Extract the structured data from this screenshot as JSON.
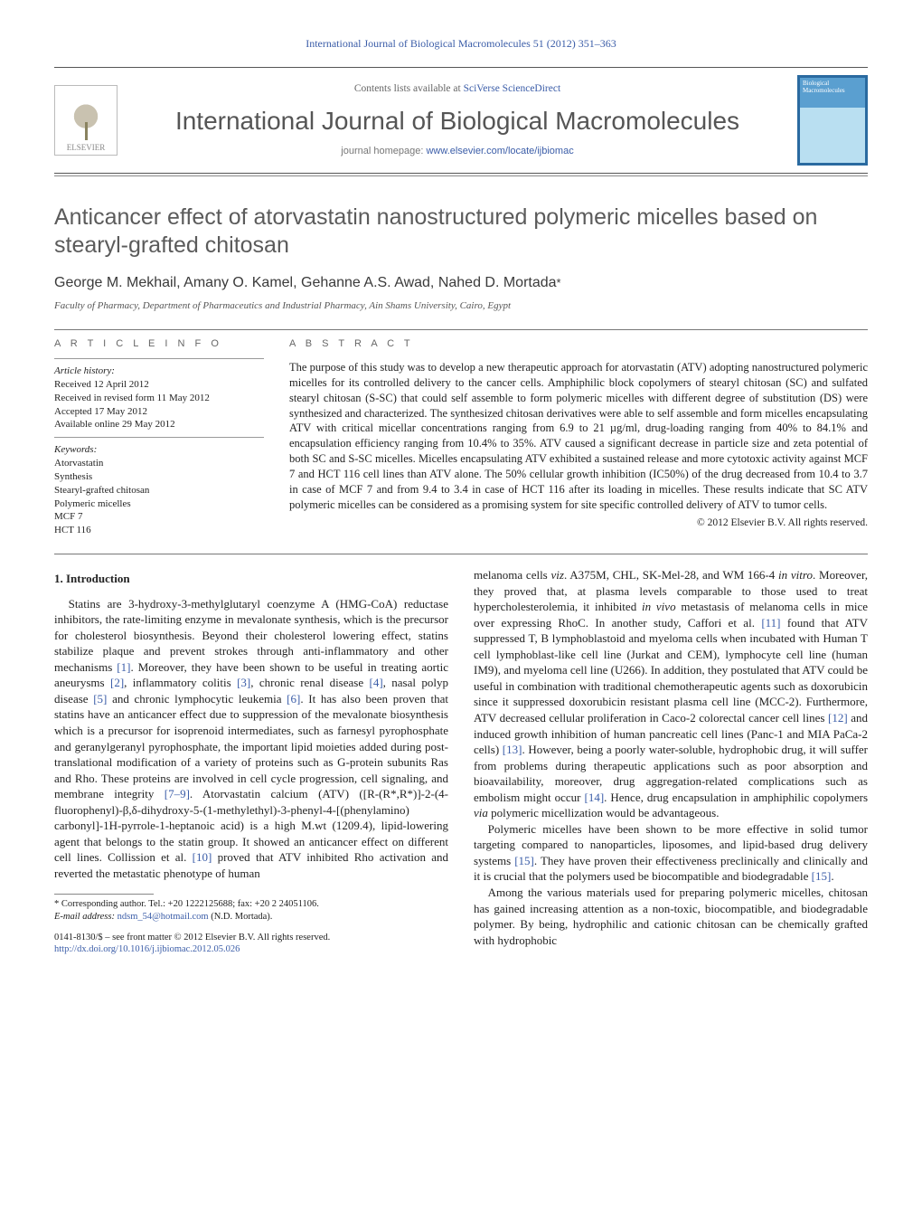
{
  "header": {
    "running_citation": "International Journal of Biological Macromolecules 51 (2012) 351–363",
    "contents_line_prefix": "Contents lists available at ",
    "contents_line_link": "SciVerse ScienceDirect",
    "journal_title": "International Journal of Biological Macromolecules",
    "journal_homepage_prefix": "journal homepage: ",
    "journal_homepage_link": "www.elsevier.com/locate/ijbiomac",
    "publisher_logo_label": "ELSEVIER",
    "cover_caption_top": "Biological",
    "cover_caption_bottom": "Macromolecules"
  },
  "article": {
    "title": "Anticancer effect of atorvastatin nanostructured polymeric micelles based on stearyl-grafted chitosan",
    "authors_line": "George M. Mekhail, Amany O. Kamel, Gehanne A.S. Awad, Nahed D. Mortada",
    "corr_marker": "*",
    "affiliation": "Faculty of Pharmacy, Department of Pharmaceutics and Industrial Pharmacy, Ain Shams University, Cairo, Egypt"
  },
  "info": {
    "info_heading": "a r t i c l e   i n f o",
    "history_label": "Article history:",
    "received": "Received 12 April 2012",
    "received_revised": "Received in revised form 11 May 2012",
    "accepted": "Accepted 17 May 2012",
    "available": "Available online 29 May 2012",
    "keywords_label": "Keywords:",
    "keywords": [
      "Atorvastatin",
      "Synthesis",
      "Stearyl-grafted chitosan",
      "Polymeric micelles",
      "MCF 7",
      "HCT 116"
    ]
  },
  "abstract": {
    "heading": "a b s t r a c t",
    "text": "The purpose of this study was to develop a new therapeutic approach for atorvastatin (ATV) adopting nanostructured polymeric micelles for its controlled delivery to the cancer cells. Amphiphilic block copolymers of stearyl chitosan (SC) and sulfated stearyl chitosan (S-SC) that could self assemble to form polymeric micelles with different degree of substitution (DS) were synthesized and characterized. The synthesized chitosan derivatives were able to self assemble and form micelles encapsulating ATV with critical micellar concentrations ranging from 6.9 to 21 µg/ml, drug-loading ranging from 40% to 84.1% and encapsulation efficiency ranging from 10.4% to 35%. ATV caused a significant decrease in particle size and zeta potential of both SC and S-SC micelles. Micelles encapsulating ATV exhibited a sustained release and more cytotoxic activity against MCF 7 and HCT 116 cell lines than ATV alone. The 50% cellular growth inhibition (IC50%) of the drug decreased from 10.4 to 3.7 in case of MCF 7 and from 9.4 to 3.4 in case of HCT 116 after its loading in micelles. These results indicate that SC ATV polymeric micelles can be considered as a promising system for site specific controlled delivery of ATV to tumor cells.",
    "copyright": "© 2012 Elsevier B.V. All rights reserved."
  },
  "body": {
    "section_heading": "1. Introduction",
    "p1a": "Statins are 3-hydroxy-3-methylglutaryl coenzyme A (HMG-CoA) reductase inhibitors, the rate-limiting enzyme in mevalonate synthesis, which is the precursor for cholesterol biosynthesis. Beyond their cholesterol lowering effect, statins stabilize plaque and prevent strokes through anti-inflammatory and other mechanisms ",
    "c1": "[1]",
    "p1b": ". Moreover, they have been shown to be useful in treating aortic aneurysms ",
    "c2": "[2]",
    "p1c": ", inflammatory colitis ",
    "c3": "[3]",
    "p1d": ", chronic renal disease ",
    "c4": "[4]",
    "p1e": ", nasal polyp disease ",
    "c5": "[5]",
    "p1f": " and chronic lymphocytic leukemia ",
    "c6": "[6]",
    "p1g": ". It has also been proven that statins have an anticancer effect due to suppression of the mevalonate biosynthesis which is a precursor for isoprenoid intermediates, such as farnesyl pyrophosphate and geranylgeranyl pyrophosphate, the important lipid moieties added during post-translational modification of a variety of proteins such as G-protein subunits Ras and Rho. These proteins are involved in cell cycle progression, cell signaling, and membrane integrity ",
    "c79": "[7–9]",
    "p1h": ". Atorvastatin calcium (ATV) ([R-(R*,R*)]-2-(4-fluorophenyl)-β,δ-dihydroxy-5-(1-methylethyl)-3-phenyl-4-[(phenylamino) carbonyl]-1H-pyrrole-1-heptanoic acid) is a high M.wt (1209.4), lipid-lowering agent that belongs to the statin group. It showed an anticancer effect on different cell lines. Collission et al. ",
    "c10": "[10]",
    "p1i": " proved that ATV inhibited Rho activation and reverted the metastatic phenotype of human",
    "p2a": "melanoma cells ",
    "viz": "viz",
    "p2a2": ". A375M, CHL, SK-Mel-28, and WM 166-4 ",
    "invitroA": "in vitro",
    "p2a3": ". Moreover, they proved that, at plasma levels comparable to those used to treat hypercholesterolemia, it inhibited ",
    "invivo": "in vivo",
    "p2a4": " metastasis of melanoma cells in mice over expressing RhoC. In another study, Caffori et al. ",
    "c11": "[11]",
    "p2b": " found that ATV suppressed T, B lymphoblastoid and myeloma cells when incubated with Human T cell lymphoblast-like cell line (Jurkat and CEM), lymphocyte cell line (human IM9), and myeloma cell line (U266). In addition, they postulated that ATV could be useful in combination with traditional chemotherapeutic agents such as doxorubicin since it suppressed doxorubicin resistant plasma cell line (MCC-2). Furthermore, ATV decreased cellular proliferation in Caco-2 colorectal cancer cell lines ",
    "c12": "[12]",
    "p2c": " and induced growth inhibition of human pancreatic cell lines (Panc-1 and MIA PaCa-2 cells) ",
    "c13": "[13]",
    "p2d": ". However, being a poorly water-soluble, hydrophobic drug, it will suffer from problems during therapeutic applications such as poor absorption and bioavailability, moreover, drug aggregation-related complications such as embolism might occur ",
    "c14": "[14]",
    "p2e": ". Hence, drug encapsulation in amphiphilic copolymers ",
    "via": "via",
    "p2e2": " polymeric micellization would be advantageous.",
    "p3a": "Polymeric micelles have been shown to be more effective in solid tumor targeting compared to nanoparticles, liposomes, and lipid-based drug delivery systems ",
    "c15a": "[15]",
    "p3b": ". They have proven their effectiveness preclinically and clinically and it is crucial that the polymers used be biocompatible and biodegradable ",
    "c15b": "[15]",
    "p3c": ".",
    "p4": "Among the various materials used for preparing polymeric micelles, chitosan has gained increasing attention as a non-toxic, biocompatible, and biodegradable polymer. By being, hydrophilic and cationic chitosan can be chemically grafted with hydrophobic"
  },
  "footnote": {
    "corr_text": "* Corresponding author. Tel.: +20 1222125688; fax: +20 2 24051106.",
    "email_label": "E-mail address: ",
    "email": "ndsm_54@hotmail.com",
    "email_tail": " (N.D. Mortada)."
  },
  "ids": {
    "issn_line": "0141-8130/$ – see front matter © 2012 Elsevier B.V. All rights reserved.",
    "doi_label": "http://dx.doi.org/",
    "doi": "10.1016/j.ijbiomac.2012.05.026"
  },
  "colors": {
    "link": "#3b5da8",
    "text": "#222222",
    "muted": "#666666",
    "rule": "#777777",
    "cover_border": "#2a6aa0"
  }
}
